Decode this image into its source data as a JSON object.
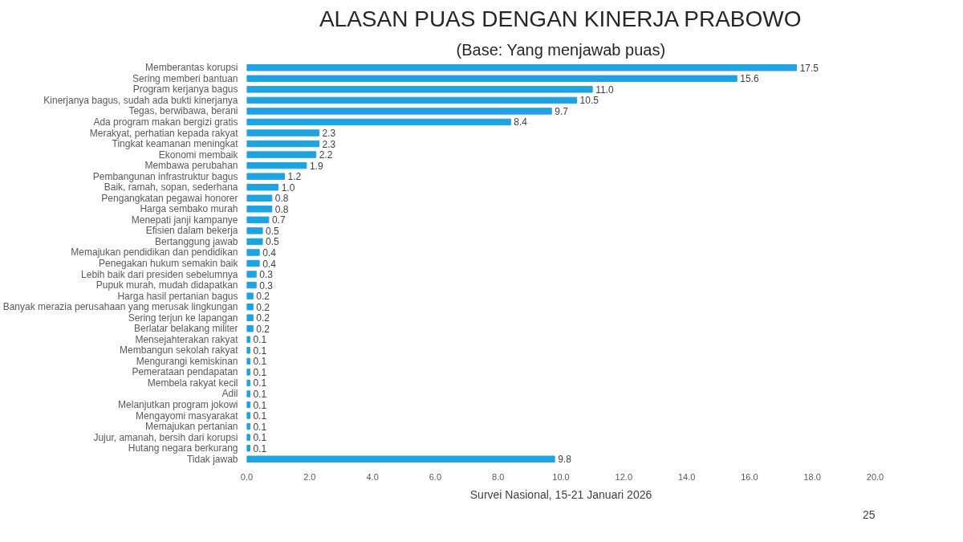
{
  "chart_data": {
    "type": "bar",
    "orientation": "horizontal",
    "title": "ALASAN PUAS DENGAN KINERJA PRABOWO",
    "subtitle": "(Base: Yang menjawab puas)",
    "categories": [
      "Memberantas korupsi",
      "Sering memberi bantuan",
      "Program kerjanya bagus",
      "Kinerjanya bagus, sudah ada bukti kinerjanya",
      "Tegas, berwibawa, berani",
      "Ada program makan bergizi gratis",
      "Merakyat, perhatian kepada rakyat",
      "Tingkat keamanan meningkat",
      "Ekonomi membaik",
      "Membawa perubahan",
      "Pembangunan infrastruktur bagus",
      "Baik, ramah, sopan, sederhana",
      "Pengangkatan pegawai honorer",
      "Harga sembako murah",
      "Menepati janji kampanye",
      "Efisien dalam bekerja",
      "Bertanggung jawab",
      "Memajukan pendidikan dan pendidikan",
      "Penegakan hukum semakin baik",
      "Lebih baik dari presiden sebelumnya",
      "Pupuk murah, mudah didapatkan",
      "Harga hasil pertanian bagus",
      "Banyak merazia perusahaan yang merusak lingkungan",
      "Sering terjun ke lapangan",
      "Berlatar belakang militer",
      "Mensejahterakan rakyat",
      "Membangun sekolah rakyat",
      "Mengurangi kemiskinan",
      "Pemerataan pendapatan",
      "Membela rakyat kecil",
      "Adil",
      "Melanjutkan program jokowi",
      "Mengayomi masyarakat",
      "Memajukan pertanian",
      "Jujur, amanah, bersih dari korupsi",
      "Hutang negara berkurang",
      "Tidak jawab"
    ],
    "values": [
      17.5,
      15.6,
      11.0,
      10.5,
      9.7,
      8.4,
      2.3,
      2.3,
      2.2,
      1.9,
      1.2,
      1.0,
      0.8,
      0.8,
      0.7,
      0.5,
      0.5,
      0.4,
      0.4,
      0.3,
      0.3,
      0.2,
      0.2,
      0.2,
      0.2,
      0.1,
      0.1,
      0.1,
      0.1,
      0.1,
      0.1,
      0.1,
      0.1,
      0.1,
      0.1,
      0.1,
      9.8
    ],
    "value_labels": [
      "17.5",
      "15.6",
      "11.0",
      "10.5",
      "9.7",
      "8.4",
      "2.3",
      "2.3",
      "2.2",
      "1.9",
      "1.2",
      "1.0",
      "0.8",
      "0.8",
      "0.7",
      "0.5",
      "0.5",
      "0.4",
      "0.4",
      "0.3",
      "0.3",
      "0.2",
      "0.2",
      "0.2",
      "0.2",
      "0.1",
      "0.1",
      "0.1",
      "0.1",
      "0.1",
      "0.1",
      "0.1",
      "0.1",
      "0.1",
      "0.1",
      "0.1",
      "9.8"
    ],
    "color": "#1fa3e0",
    "xlim": [
      0,
      20
    ],
    "xticks": [
      {
        "value": 0,
        "label": "0.0"
      },
      {
        "value": 2,
        "label": "2.0"
      },
      {
        "value": 4,
        "label": "4.0"
      },
      {
        "value": 6,
        "label": "6.0"
      },
      {
        "value": 8,
        "label": "8.0"
      },
      {
        "value": 10,
        "label": "10.0"
      },
      {
        "value": 12,
        "label": "12.0"
      },
      {
        "value": 14,
        "label": "14.0"
      },
      {
        "value": 16,
        "label": "16.0"
      },
      {
        "value": 18,
        "label": "18.0"
      },
      {
        "value": 20,
        "label": "20.0"
      }
    ],
    "grid": false,
    "annotations": [
      "Survei Nasional, 15-21 Januari 2026",
      "25"
    ]
  }
}
